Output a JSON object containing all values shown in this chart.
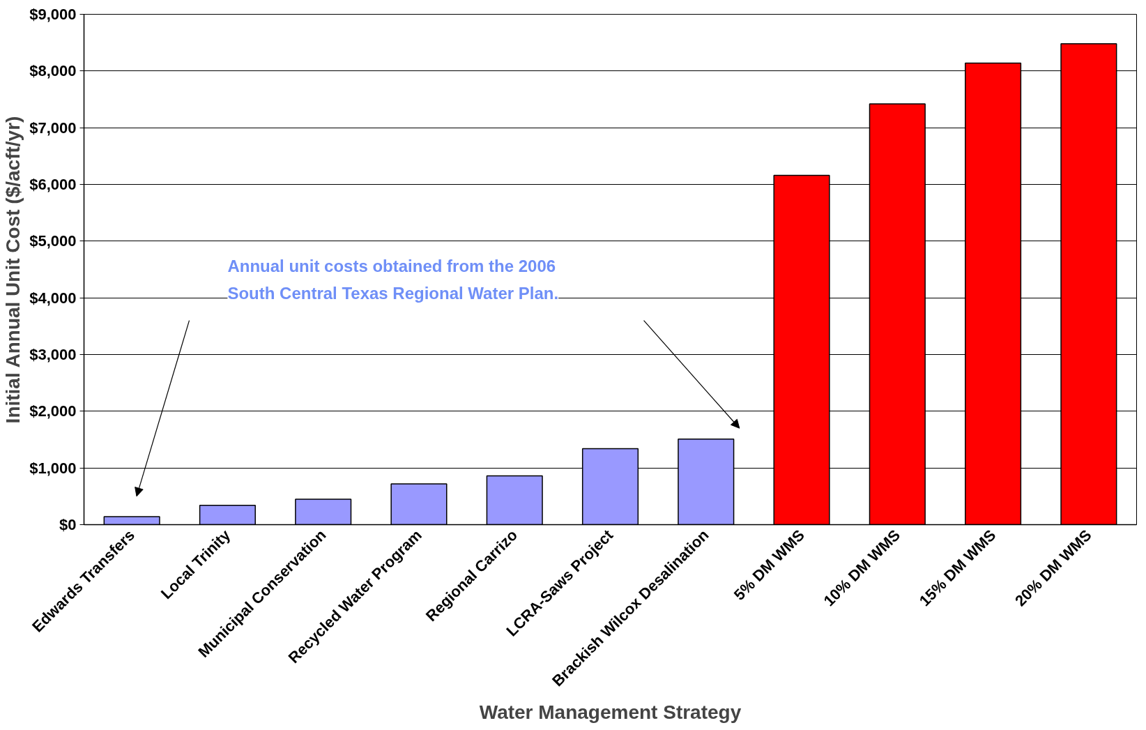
{
  "chart_data": {
    "type": "bar",
    "xlabel": "Water Management Strategy",
    "ylabel": "Initial Annual Unit Cost ($/acft/yr)",
    "categories": [
      "Edwards Transfers",
      "Local Trinity",
      "Municipal Conservation",
      "Recycled Water Program",
      "Regional Carrizo",
      "LCRA-Saws Project",
      "Brackish Wilcox Desalination",
      "5% DM WMS",
      "10% DM WMS",
      "15% DM WMS",
      "20% DM WMS"
    ],
    "values": [
      140,
      340,
      450,
      720,
      860,
      1340,
      1510,
      6160,
      7420,
      8140,
      8480
    ],
    "colors": [
      "#9999ff",
      "#9999ff",
      "#9999ff",
      "#9999ff",
      "#9999ff",
      "#9999ff",
      "#9999ff",
      "#ff0000",
      "#ff0000",
      "#ff0000",
      "#ff0000"
    ],
    "ylim": [
      0,
      9000
    ],
    "yticks": [
      {
        "value": 0,
        "label": "$0"
      },
      {
        "value": 1000,
        "label": "$1,000"
      },
      {
        "value": 2000,
        "label": "$2,000"
      },
      {
        "value": 3000,
        "label": "$3,000"
      },
      {
        "value": 4000,
        "label": "$4,000"
      },
      {
        "value": 5000,
        "label": "$5,000"
      },
      {
        "value": 6000,
        "label": "$6,000"
      },
      {
        "value": 7000,
        "label": "$7,000"
      },
      {
        "value": 8000,
        "label": "$8,000"
      },
      {
        "value": 9000,
        "label": "$9,000"
      }
    ],
    "grid": "y",
    "annotations": [
      "Annual unit costs obtained from the 2006 South Central Texas Regional Water Plan."
    ]
  }
}
